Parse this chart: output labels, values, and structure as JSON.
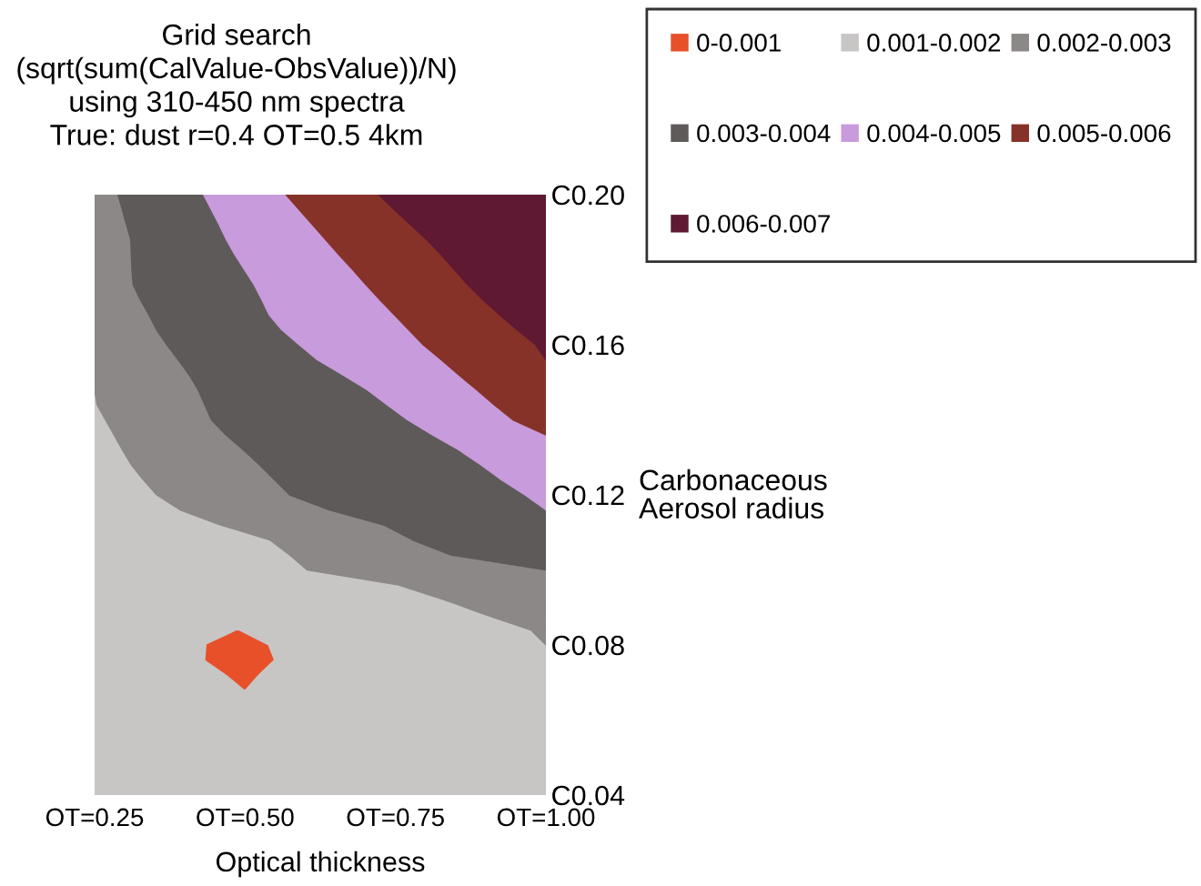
{
  "chart_data": {
    "type": "area",
    "orientation": "horizontal",
    "title": "Grid search\n(sqrt(sum(CalValue-ObsValue))/N)\nusing 310-450 nm spectra\nTrue: dust r=0.4 OT=0.5 4km",
    "xlabel": "Optical thickness",
    "ylabel": "Carbonaceous\nAerosol radius",
    "categories": [
      "C0.20",
      null,
      null,
      null,
      null,
      null,
      null,
      null,
      null,
      null,
      "C0.16",
      null,
      null,
      null,
      null,
      null,
      null,
      null,
      null,
      null,
      "C0.12",
      null,
      null,
      null,
      null,
      null,
      null,
      null,
      null,
      null,
      "C0.08",
      null,
      null,
      null,
      null,
      null,
      null,
      null,
      null,
      null,
      "C0.04"
    ],
    "xlim": [
      0.25,
      1.0
    ],
    "xticks": [
      {
        "value": 0.25,
        "label": "OT=0.25"
      },
      {
        "value": 0.5,
        "label": "OT=0.50"
      },
      {
        "value": 0.75,
        "label": "OT=0.75"
      },
      {
        "value": 1.0,
        "label": "OT=1.00"
      }
    ],
    "series": [
      {
        "color": "#c8c6c4",
        "values": [
          null,
          null,
          null,
          null,
          null,
          null,
          null,
          null,
          null,
          null,
          null,
          null,
          null,
          null,
          null,
          null,
          null,
          null,
          null,
          null,
          null,
          null,
          null,
          null,
          null,
          null,
          null,
          null,
          0.25,
          0.49,
          0.437,
          0.435,
          0.471,
          0.501,
          0.25,
          null,
          null,
          null,
          null,
          null,
          null
        ]
      },
      {
        "name": "0-0.001",
        "color": "#e8502a",
        "values": [
          null,
          null,
          null,
          null,
          null,
          null,
          null,
          null,
          null,
          null,
          null,
          null,
          null,
          null,
          null,
          null,
          null,
          null,
          null,
          null,
          null,
          null,
          null,
          null,
          null,
          null,
          null,
          null,
          null,
          0.49,
          0.539,
          0.549,
          0.523,
          0.501,
          null,
          null,
          null,
          null,
          null,
          null,
          null
        ]
      },
      {
        "name": "0.001-0.002",
        "color": "#c8c6c4",
        "values": [
          null,
          null,
          null,
          null,
          null,
          null,
          null,
          null,
          null,
          null,
          null,
          null,
          null,
          0.25,
          0.254,
          0.268,
          0.282,
          0.296,
          0.311,
          0.331,
          0.353,
          0.392,
          0.459,
          0.541,
          0.574,
          0.603,
          0.755,
          0.832,
          0.901,
          0.975,
          1.0,
          1.0,
          1.0,
          1.0,
          1.0,
          1.0,
          1.0,
          1.0,
          1.0,
          1.0,
          1.0
        ]
      },
      {
        "name": "0.002-0.003",
        "color": "#8c8888",
        "values": [
          0.289,
          0.296,
          0.303,
          0.31,
          0.311,
          0.312,
          0.314,
          0.326,
          0.34,
          0.353,
          0.37,
          0.389,
          0.407,
          0.422,
          0.433,
          0.444,
          0.468,
          0.497,
          0.524,
          0.549,
          0.574,
          0.64,
          0.73,
          0.778,
          0.842,
          1.0,
          1.0,
          1.0,
          1.0,
          1.0,
          1.0,
          null,
          null,
          null,
          null,
          null,
          null,
          null,
          null,
          null,
          null
        ]
      },
      {
        "name": "0.003-0.004",
        "color": "#5f5a5a",
        "values": [
          0.431,
          0.444,
          0.457,
          0.469,
          0.483,
          0.499,
          0.515,
          0.528,
          0.54,
          0.561,
          0.59,
          0.62,
          0.662,
          0.703,
          0.736,
          0.77,
          0.811,
          0.855,
          0.892,
          0.926,
          0.965,
          1.0,
          1.0,
          1.0,
          1.0,
          1.0,
          null,
          null,
          null,
          null,
          null,
          null,
          null,
          null,
          null,
          null,
          null,
          null,
          null,
          null,
          null
        ]
      },
      {
        "name": "0.004-0.005",
        "color": "#c89bdc",
        "values": [
          0.568,
          0.59,
          0.612,
          0.634,
          0.656,
          0.679,
          0.701,
          0.724,
          0.748,
          0.772,
          0.796,
          0.826,
          0.855,
          0.885,
          0.914,
          0.945,
          1.0,
          1.0,
          1.0,
          1.0,
          1.0,
          1.0,
          null,
          null,
          null,
          null,
          null,
          null,
          null,
          null,
          null,
          null,
          null,
          null,
          null,
          null,
          null,
          null,
          null,
          null,
          null
        ]
      },
      {
        "name": "0.005-0.006",
        "color": "#873228",
        "values": [
          0.722,
          0.748,
          0.775,
          0.802,
          0.826,
          0.848,
          0.87,
          0.895,
          0.923,
          0.952,
          0.983,
          1.0,
          1.0,
          1.0,
          1.0,
          1.0,
          1.0,
          null,
          null,
          null,
          null,
          null,
          null,
          null,
          null,
          null,
          null,
          null,
          null,
          null,
          null,
          null,
          null,
          null,
          null,
          null,
          null,
          null,
          null,
          null,
          null
        ]
      },
      {
        "name": "0.006-0.007",
        "color": "#5f1932",
        "values": [
          1.0,
          1.0,
          1.0,
          1.0,
          1.0,
          1.0,
          1.0,
          1.0,
          1.0,
          1.0,
          1.0,
          1.0,
          null,
          null,
          null,
          null,
          null,
          null,
          null,
          null,
          null,
          null,
          null,
          null,
          null,
          null,
          null,
          null,
          null,
          null,
          null,
          null,
          null,
          null,
          null,
          null,
          null,
          null,
          null,
          null,
          null
        ]
      }
    ],
    "legend": "top right"
  }
}
